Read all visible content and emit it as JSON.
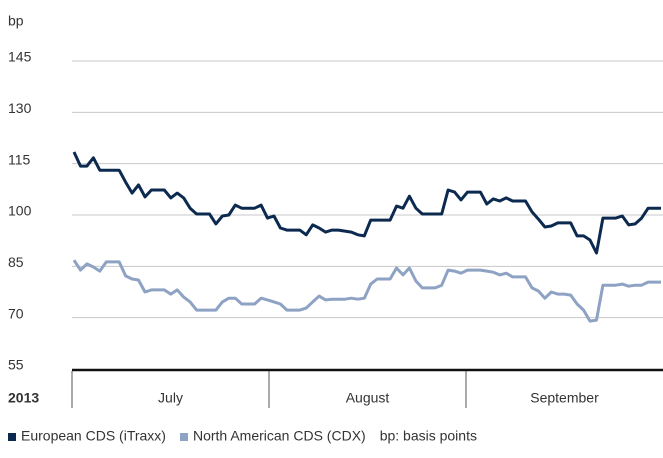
{
  "chart_data": {
    "type": "line",
    "y_label": "bp",
    "year_label": "2013",
    "months": [
      "July",
      "August",
      "September"
    ],
    "note": "bp: basis points",
    "ylim": [
      55,
      145
    ],
    "yticks": [
      55,
      70,
      85,
      100,
      115,
      130,
      145
    ],
    "grid": true,
    "legend": "bottom-left",
    "series": [
      {
        "name": "European CDS (iTraxx)",
        "color": "#0c2a4f",
        "values": [
          118.4,
          114.3,
          114.3,
          116.7,
          113.1,
          113.1,
          113.1,
          113.1,
          109.6,
          106.4,
          108.8,
          105.3,
          107.3,
          107.3,
          107.3,
          105.0,
          106.4,
          105.0,
          102.0,
          100.3,
          100.3,
          100.3,
          97.4,
          99.7,
          100.0,
          102.9,
          102.0,
          102.0,
          102.0,
          102.9,
          99.1,
          99.7,
          96.2,
          95.6,
          95.6,
          95.6,
          94.2,
          97.1,
          96.2,
          95.0,
          95.6,
          95.6,
          95.3,
          95.0,
          94.2,
          93.9,
          98.5,
          98.5,
          98.5,
          98.5,
          102.6,
          102.0,
          105.5,
          102.0,
          100.3,
          100.3,
          100.3,
          100.3,
          107.3,
          106.7,
          104.4,
          106.7,
          106.7,
          106.7,
          103.2,
          104.7,
          104.1,
          105.0,
          104.1,
          104.1,
          104.1,
          100.9,
          98.8,
          96.5,
          96.8,
          97.7,
          97.7,
          97.7,
          93.9,
          93.9,
          92.7,
          88.9,
          99.1,
          99.1,
          99.1,
          99.7,
          97.1,
          97.4,
          99.1,
          102.0,
          102.0,
          102.0
        ]
      },
      {
        "name": "North American CDS (CDX)",
        "color": "#8ea2c3",
        "values": [
          86.8,
          83.9,
          85.7,
          84.8,
          83.6,
          86.3,
          86.3,
          86.3,
          82.2,
          81.3,
          81.0,
          77.5,
          78.1,
          78.1,
          78.1,
          76.9,
          78.1,
          76.0,
          74.6,
          72.2,
          72.2,
          72.2,
          72.2,
          74.6,
          75.7,
          75.7,
          74.0,
          74.0,
          74.0,
          75.7,
          75.2,
          74.6,
          74.0,
          72.2,
          72.2,
          72.2,
          72.8,
          74.6,
          76.3,
          75.2,
          75.4,
          75.4,
          75.4,
          75.7,
          75.4,
          75.7,
          79.8,
          81.3,
          81.3,
          81.3,
          84.5,
          82.5,
          84.5,
          80.7,
          78.7,
          78.7,
          78.7,
          79.5,
          83.9,
          83.6,
          83.0,
          83.9,
          83.9,
          83.9,
          83.6,
          83.3,
          82.5,
          83.0,
          81.9,
          81.9,
          81.9,
          78.7,
          77.8,
          75.7,
          77.5,
          76.9,
          76.9,
          76.6,
          74.0,
          72.2,
          69.0,
          69.3,
          79.5,
          79.5,
          79.5,
          79.8,
          79.2,
          79.5,
          79.5,
          80.4,
          80.4,
          80.4
        ]
      }
    ]
  }
}
